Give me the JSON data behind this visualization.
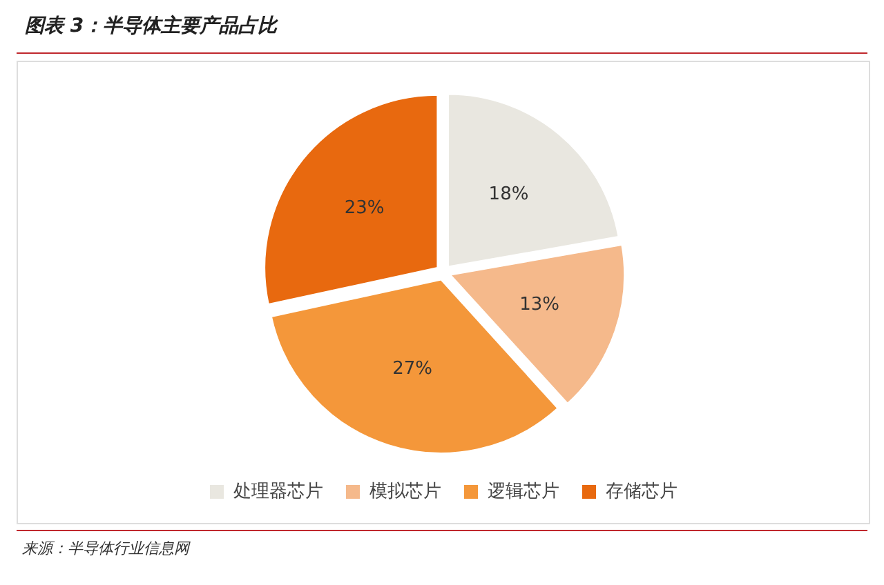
{
  "chart_data": {
    "type": "pie",
    "title": "图表 3：半导体主要产品占比",
    "categories": [
      "处理器芯片",
      "模拟芯片",
      "逻辑芯片",
      "存储芯片"
    ],
    "values": [
      18,
      13,
      27,
      23
    ],
    "value_labels": [
      "18%",
      "13%",
      "27%",
      "23%"
    ],
    "colors": [
      "#e9e7e0",
      "#f5b98b",
      "#f4973a",
      "#e8690f"
    ],
    "legend": "bottom",
    "annotations": [
      "来源：半导体行业信息网"
    ]
  }
}
